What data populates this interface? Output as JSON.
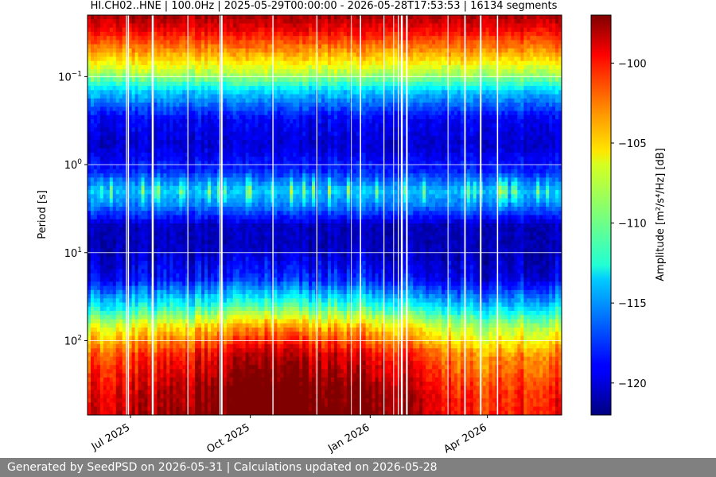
{
  "chart_data": {
    "type": "heatmap",
    "title": "HI.CH02..HNE | 100.0Hz | 2025-05-29T00:00:00 - 2026-05-28T17:53:53 | 16134 segments",
    "ylabel": "Period [s]",
    "y_scale": "log",
    "y_inverted": true,
    "ylim": [
      0.02,
      700
    ],
    "xlim": [
      "2025-05-29",
      "2026-05-28"
    ],
    "xticks": [
      {
        "value": "2025-07-01",
        "label": "Jul 2025"
      },
      {
        "value": "2025-10-01",
        "label": "Oct 2025"
      },
      {
        "value": "2026-01-01",
        "label": "Jan 2026"
      },
      {
        "value": "2026-04-01",
        "label": "Apr 2026"
      }
    ],
    "yticks": [
      {
        "value": 0.1,
        "base": "10",
        "exp": "−1"
      },
      {
        "value": 1,
        "base": "10",
        "exp": "0"
      },
      {
        "value": 10,
        "base": "10",
        "exp": "1"
      },
      {
        "value": 100,
        "base": "10",
        "exp": "2"
      }
    ],
    "grid": true,
    "colorbar": {
      "label": "Amplitude [m²/s⁴/Hz] [dB]",
      "range": [
        -122,
        -97
      ],
      "ticks": [
        -100,
        -105,
        -110,
        -115,
        -120
      ],
      "tick_labels": [
        "−100",
        "−105",
        "−110",
        "−115",
        "−120"
      ],
      "colormap": "jet"
    },
    "period_profile": [
      {
        "period": 0.02,
        "db": -98.0
      },
      {
        "period": 0.03,
        "db": -100.0
      },
      {
        "period": 0.06,
        "db": -105.0
      },
      {
        "period": 0.1,
        "db": -109.0
      },
      {
        "period": 0.15,
        "db": -114.0
      },
      {
        "period": 0.3,
        "db": -119.0
      },
      {
        "period": 0.6,
        "db": -120.0
      },
      {
        "period": 1.2,
        "db": -118.0
      },
      {
        "period": 2.0,
        "db": -114.0
      },
      {
        "period": 3.0,
        "db": -116.0
      },
      {
        "period": 5.0,
        "db": -120.5
      },
      {
        "period": 10,
        "db": -120.5
      },
      {
        "period": 20,
        "db": -119.0
      },
      {
        "period": 40,
        "db": -113.0
      },
      {
        "period": 70,
        "db": -107.0
      },
      {
        "period": 150,
        "db": -102.0
      },
      {
        "period": 400,
        "db": -99.5
      },
      {
        "period": 700,
        "db": -99.0
      }
    ],
    "long_period_seasonal": [
      {
        "date": "2025-05-29",
        "offset_db": 0.0
      },
      {
        "date": "2025-08-01",
        "offset_db": 1.0
      },
      {
        "date": "2025-09-15",
        "offset_db": 3.0
      },
      {
        "date": "2025-10-15",
        "offset_db": 4.0
      },
      {
        "date": "2025-12-01",
        "offset_db": 3.0
      },
      {
        "date": "2026-02-01",
        "offset_db": 1.5
      },
      {
        "date": "2026-03-15",
        "offset_db": -2.0
      },
      {
        "date": "2026-05-28",
        "offset_db": -1.0
      }
    ]
  },
  "footer": {
    "text": "Generated by SeedPSD on 2026-05-31 | Calculations updated on 2026-05-28"
  }
}
